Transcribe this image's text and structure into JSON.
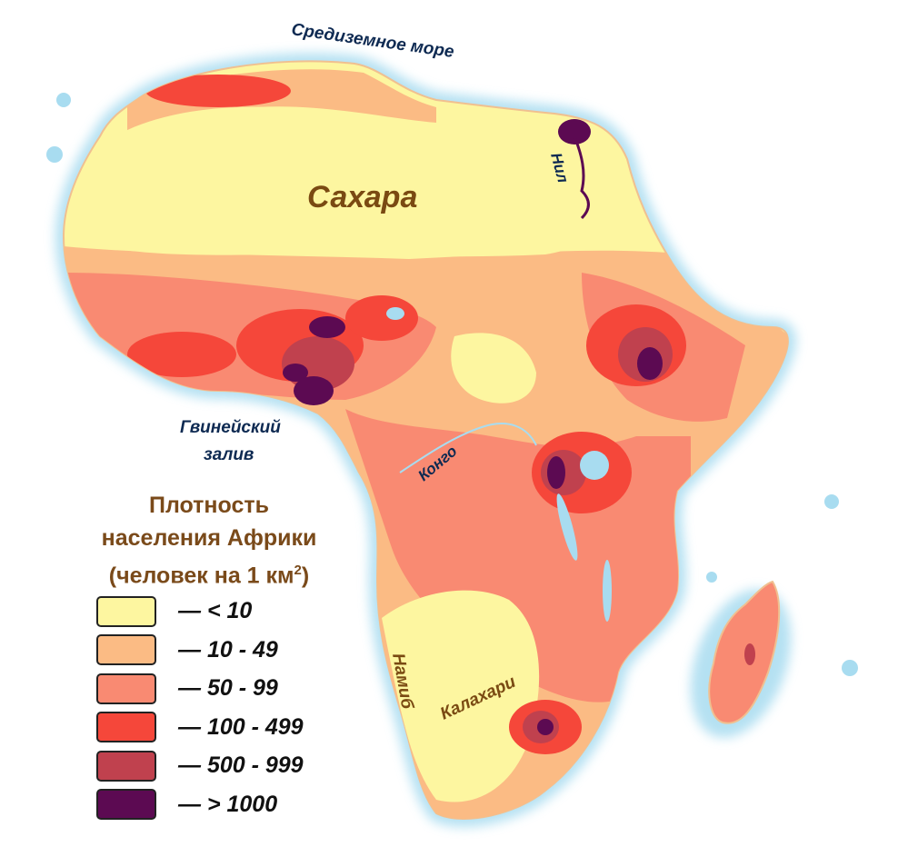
{
  "map_labels": {
    "mediterranean": "Средиземное море",
    "sahara": "Сахара",
    "nile": "Нил",
    "gulf_line1": "Гвинейский",
    "gulf_line2": "залив",
    "congo": "Конго",
    "namib": "Намиб",
    "kalahari": "Калахари"
  },
  "legend": {
    "title_line1": "Плотность",
    "title_line2": "населения Африки",
    "title_line3_prefix": "(человек на 1 км",
    "title_line3_sup": "2",
    "title_line3_suffix": ")",
    "items": [
      {
        "label": "— < 10",
        "color": "#fdf6a0"
      },
      {
        "label": "— 10 - 49",
        "color": "#fbbb84"
      },
      {
        "label": "— 50 - 99",
        "color": "#f98a72"
      },
      {
        "label": "— 100 - 499",
        "color": "#f5473a"
      },
      {
        "label": "— 500 - 999",
        "color": "#c0414e"
      },
      {
        "label": "— > 1000",
        "color": "#5c0a52"
      }
    ]
  },
  "colors": {
    "water": "#a8dcf0",
    "continent_outline": "#e8b48a"
  }
}
